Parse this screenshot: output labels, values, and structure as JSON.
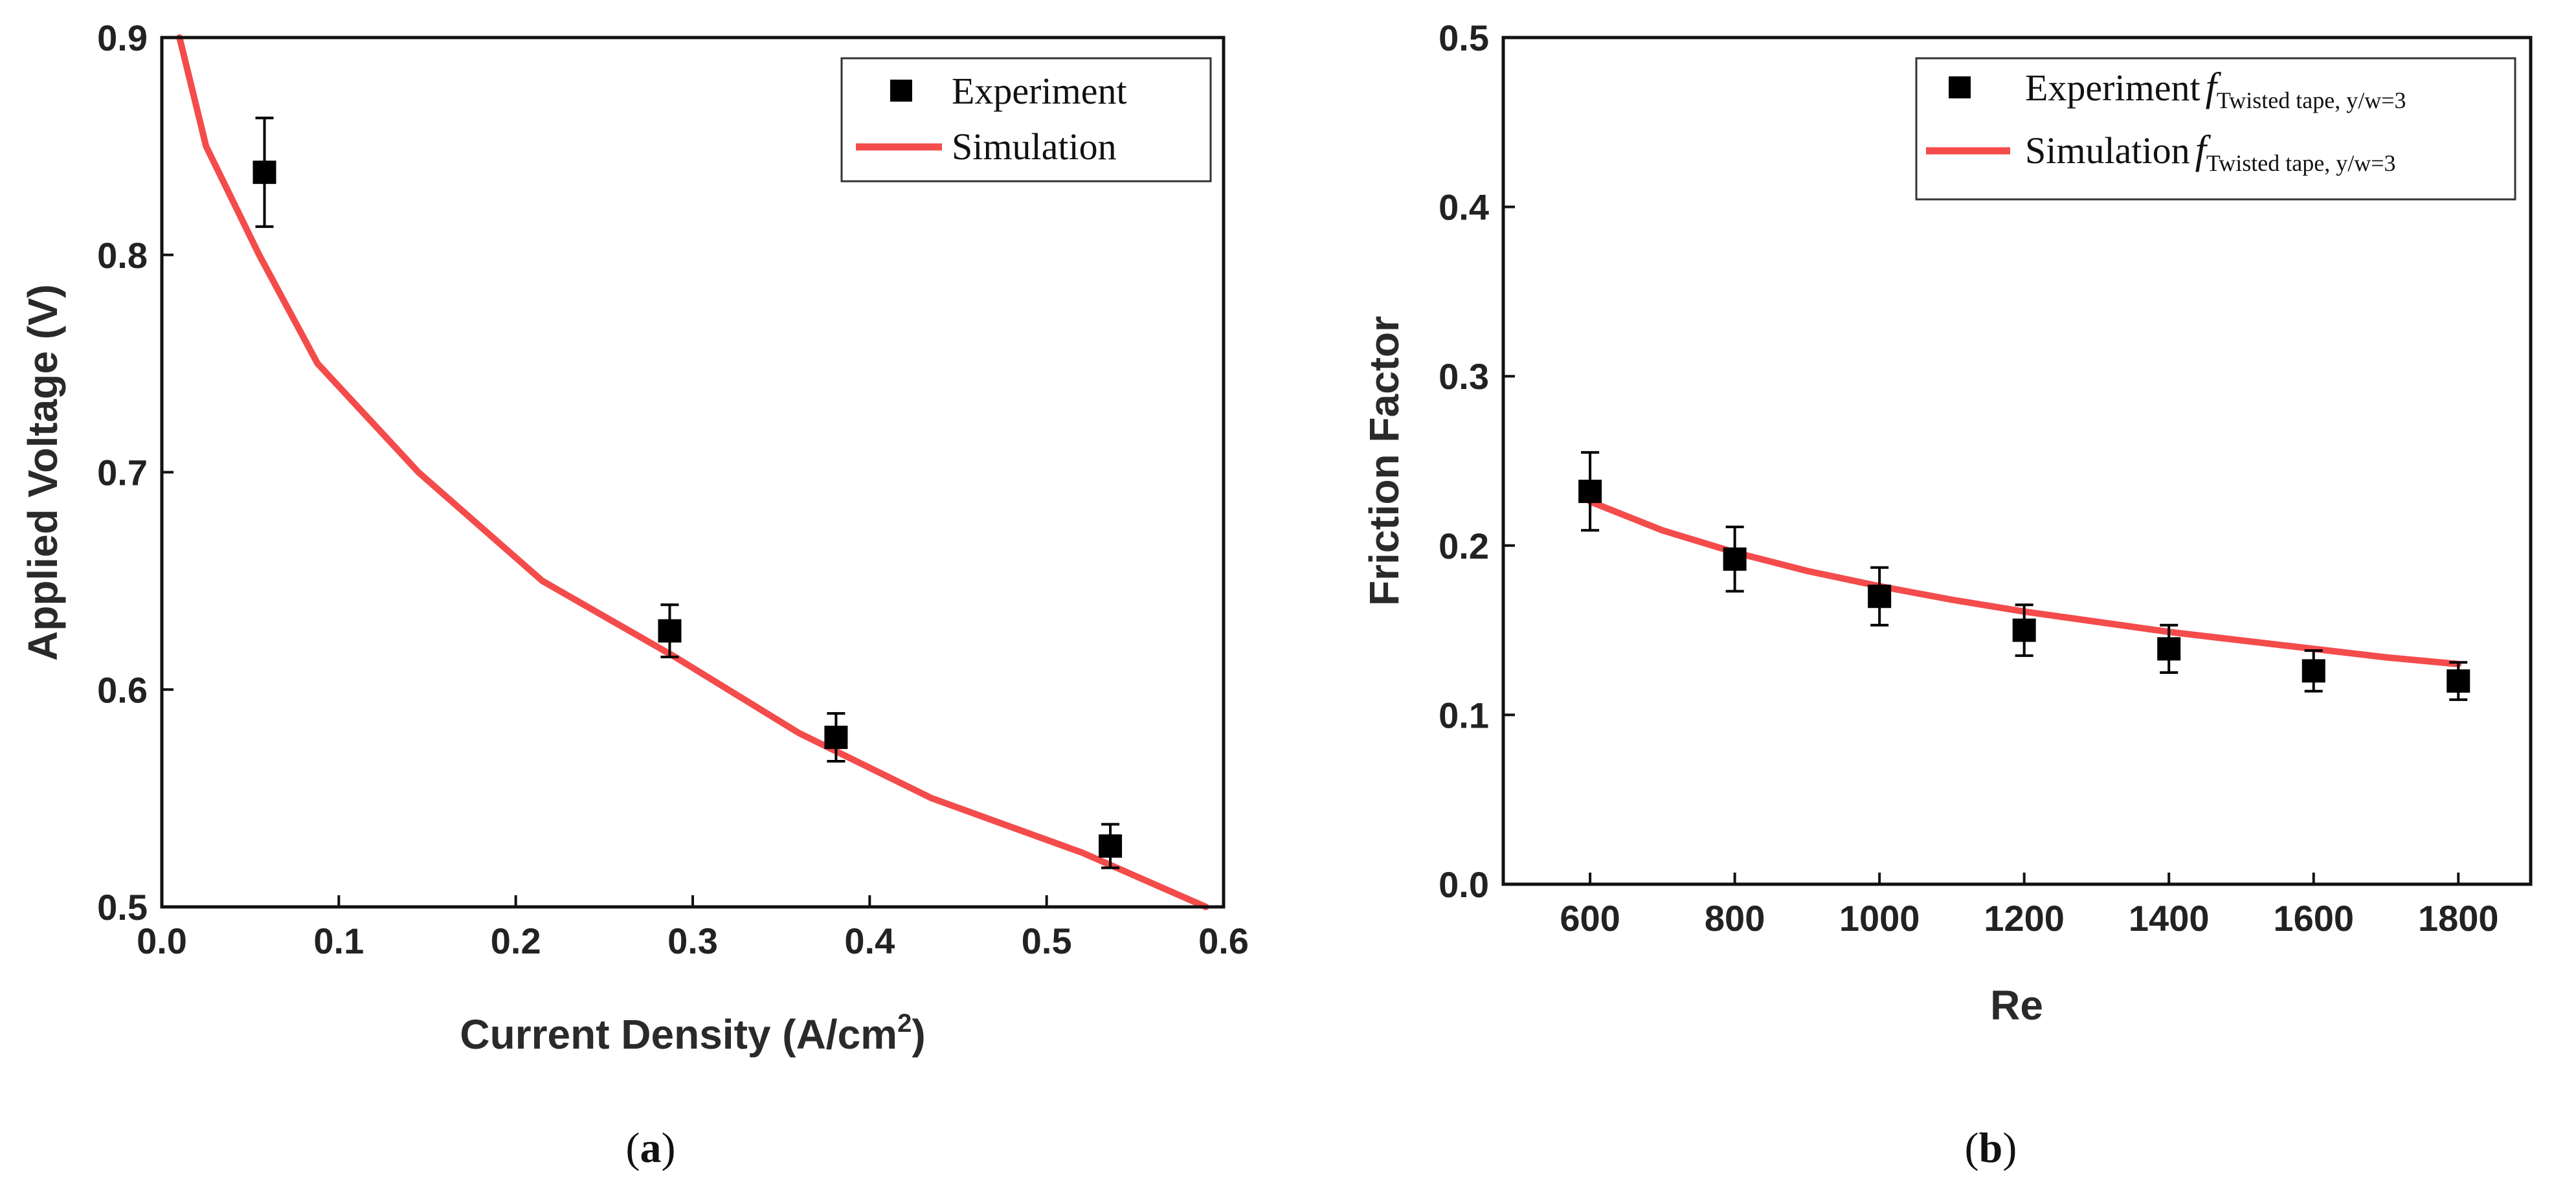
{
  "chart_data": [
    {
      "type": "scatter",
      "caption_letter": "a",
      "xlabel_main": "Current Density (A/cm",
      "xlabel_sup": "2",
      "xlabel_close": ")",
      "ylabel": "Applied Voltage (V)",
      "xlim": [
        0.0,
        0.6
      ],
      "ylim": [
        0.5,
        0.9
      ],
      "xticks": [
        "0.0",
        "0.1",
        "0.2",
        "0.3",
        "0.4",
        "0.5",
        "0.6"
      ],
      "xtick_values": [
        0.0,
        0.1,
        0.2,
        0.3,
        0.4,
        0.5,
        0.6
      ],
      "yticks": [
        "0.5",
        "0.6",
        "0.7",
        "0.8",
        "0.9"
      ],
      "ytick_values": [
        0.5,
        0.6,
        0.7,
        0.8,
        0.9
      ],
      "legend_position": "top-right",
      "series": [
        {
          "name": "Experiment",
          "kind": "points",
          "color": "#000000",
          "x": [
            0.058,
            0.287,
            0.381,
            0.536
          ],
          "y": [
            0.838,
            0.627,
            0.578,
            0.528
          ],
          "err": [
            0.025,
            0.012,
            0.011,
            0.01
          ]
        },
        {
          "name": "Simulation",
          "kind": "line",
          "color": "#f44b4b",
          "x": [
            0.01,
            0.025,
            0.055,
            0.088,
            0.145,
            0.215,
            0.29,
            0.36,
            0.435,
            0.52,
            0.59
          ],
          "y": [
            0.9,
            0.85,
            0.8,
            0.75,
            0.7,
            0.65,
            0.615,
            0.58,
            0.55,
            0.525,
            0.5
          ]
        }
      ]
    },
    {
      "type": "scatter",
      "caption_letter": "b",
      "xlabel": "Re",
      "ylabel": "Friction Factor",
      "xlim": [
        480,
        1900
      ],
      "ylim": [
        0.0,
        0.5
      ],
      "xticks": [
        "600",
        "800",
        "1000",
        "1200",
        "1400",
        "1600",
        "1800"
      ],
      "xtick_values": [
        600,
        800,
        1000,
        1200,
        1400,
        1600,
        1800
      ],
      "yticks": [
        "0.0",
        "0.1",
        "0.2",
        "0.3",
        "0.4",
        "0.5"
      ],
      "ytick_values": [
        0.0,
        0.1,
        0.2,
        0.3,
        0.4,
        0.5
      ],
      "legend_position": "top-right",
      "legend_symbol": "f",
      "legend_subscript": "Twisted tape, y/w=3",
      "series": [
        {
          "name": "Experiment",
          "kind": "points",
          "color": "#000000",
          "x": [
            600,
            800,
            1000,
            1200,
            1400,
            1600,
            1800
          ],
          "y": [
            0.232,
            0.192,
            0.17,
            0.15,
            0.139,
            0.126,
            0.12
          ],
          "err": [
            0.023,
            0.019,
            0.017,
            0.015,
            0.014,
            0.012,
            0.011
          ]
        },
        {
          "name": "Simulation",
          "kind": "line",
          "color": "#f44b4b",
          "x": [
            600,
            700,
            800,
            900,
            1000,
            1100,
            1200,
            1300,
            1400,
            1500,
            1600,
            1700,
            1800
          ],
          "y": [
            0.226,
            0.209,
            0.196,
            0.185,
            0.176,
            0.168,
            0.161,
            0.155,
            0.149,
            0.144,
            0.139,
            0.134,
            0.13
          ]
        }
      ]
    }
  ]
}
